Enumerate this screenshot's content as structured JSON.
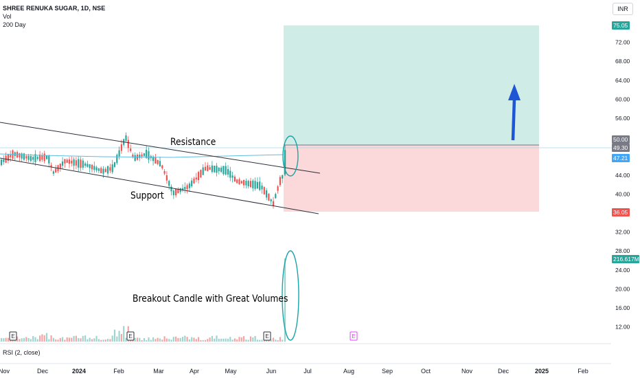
{
  "legend": {
    "symbol": "SHREE RENUKA SUGAR, 1D, NSE",
    "vol_label": "Vol",
    "ma_label": "200 Day"
  },
  "currency_button": "INR",
  "rsi_label": "RSI (2, close)",
  "annotations": {
    "resistance": "Resistance",
    "support": "Support",
    "breakout": "Breakout Candle with Great Volumes"
  },
  "price_axis": {
    "ticks": [
      "72.00",
      "68.00",
      "64.00",
      "60.00",
      "56.00",
      "44.00",
      "40.00",
      "32.00",
      "28.00",
      "24.00",
      "20.00",
      "16.00",
      "12.00"
    ],
    "badges": [
      {
        "label": "75.05",
        "color": "#26a69a"
      },
      {
        "label": "50.00",
        "color": "#787b86"
      },
      {
        "label": "49.30",
        "color": "#787b86"
      },
      {
        "label": "47.21",
        "color": "#42a5f5"
      },
      {
        "label": "36.05",
        "color": "#ef5350"
      },
      {
        "label": "216.617M",
        "color": "#26a69a"
      }
    ]
  },
  "time_axis": [
    "Nov",
    "Dec",
    "2024",
    "Feb",
    "Mar",
    "Apr",
    "May",
    "Jun",
    "Jul",
    "Aug",
    "Sep",
    "Oct",
    "Nov",
    "Dec",
    "2025",
    "Feb"
  ],
  "event_markers": [
    "E",
    "E",
    "E",
    "E"
  ],
  "colors": {
    "up": "#26a69a",
    "down": "#ef5350",
    "ma": "#5dbde0",
    "target_zone": "#d0ece6",
    "stop_zone": "#fbd8d9",
    "arrow": "#1e57d6",
    "circle": "#1aa3a8"
  },
  "chart_data": {
    "type": "candlestick",
    "symbol": "SHREE RENUKA SUGAR",
    "interval": "1D",
    "x_range": [
      "Nov 2023",
      "Feb 2025"
    ],
    "ylim": [
      10,
      78
    ],
    "position": {
      "entry": 49.3,
      "target": 75.05,
      "stop": 36.05
    },
    "moving_average_200": 47.21,
    "last_volume": "216.617M"
  }
}
